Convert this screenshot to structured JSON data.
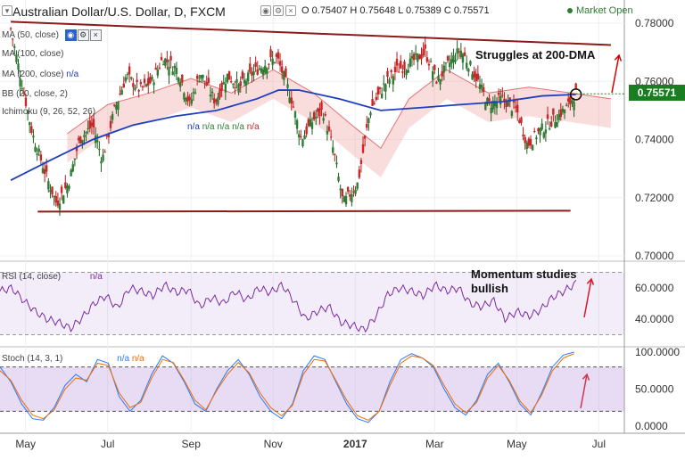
{
  "header": {
    "title": "Australian Dollar/U.S. Dollar, D, FXCM",
    "ohlc": "O 0.75407  H 0.75648  L 0.75389  C 0.75571",
    "market_status": "Market Open",
    "market_status_color": "#2e7d32"
  },
  "indicators": {
    "sma1": "MA (50, close)",
    "sma2": "MA (100, close)",
    "sma3": "MA (200, close)",
    "bb": "BB (20, close, 2)",
    "ichimoku": "Ichimoku (9, 26, 52, 26)",
    "na": "n/a",
    "rsi": "RSI (14, close)",
    "stoch": "Stoch (14, 3, 1)"
  },
  "annotations": {
    "dma": "Struggles at 200-DMA",
    "momentum_line1": "Momentum studies",
    "momentum_line2": "bullish"
  },
  "price_tag": "0.75571",
  "chart_data": [
    {
      "type": "candlestick",
      "title": "Australian Dollar/U.S. Dollar, D, FXCM",
      "ylim": [
        0.69,
        0.785
      ],
      "y_ticks": [
        "0.78000",
        "0.76000",
        "0.74000",
        "0.72000",
        "0.70000"
      ],
      "x_ticks": [
        "May",
        "Jul",
        "Sep",
        "Nov",
        "2017",
        "Mar",
        "May",
        "Jul"
      ],
      "last_price": 0.75571,
      "close_path": [
        [
          "2016-04-20",
          0.778
        ],
        [
          "2016-04-28",
          0.76
        ],
        [
          "2016-05-06",
          0.742
        ],
        [
          "2016-05-16",
          0.728
        ],
        [
          "2016-05-24",
          0.718
        ],
        [
          "2016-06-02",
          0.725
        ],
        [
          "2016-06-10",
          0.74
        ],
        [
          "2016-06-20",
          0.745
        ],
        [
          "2016-06-27",
          0.733
        ],
        [
          "2016-07-06",
          0.75
        ],
        [
          "2016-07-15",
          0.762
        ],
        [
          "2016-07-25",
          0.757
        ],
        [
          "2016-08-03",
          0.76
        ],
        [
          "2016-08-11",
          0.768
        ],
        [
          "2016-08-22",
          0.764
        ],
        [
          "2016-08-31",
          0.752
        ],
        [
          "2016-09-08",
          0.763
        ],
        [
          "2016-09-19",
          0.753
        ],
        [
          "2016-09-28",
          0.762
        ],
        [
          "2016-10-07",
          0.758
        ],
        [
          "2016-10-17",
          0.763
        ],
        [
          "2016-10-26",
          0.766
        ],
        [
          "2016-11-04",
          0.768
        ],
        [
          "2016-11-14",
          0.755
        ],
        [
          "2016-11-22",
          0.74
        ],
        [
          "2016-12-01",
          0.747
        ],
        [
          "2016-12-08",
          0.75
        ],
        [
          "2016-12-16",
          0.736
        ],
        [
          "2016-12-23",
          0.718
        ],
        [
          "2017-01-03",
          0.725
        ],
        [
          "2017-01-12",
          0.75
        ],
        [
          "2017-01-23",
          0.759
        ],
        [
          "2017-02-01",
          0.764
        ],
        [
          "2017-02-10",
          0.766
        ],
        [
          "2017-02-22",
          0.77
        ],
        [
          "2017-03-03",
          0.76
        ],
        [
          "2017-03-10",
          0.765
        ],
        [
          "2017-03-20",
          0.771
        ],
        [
          "2017-03-29",
          0.764
        ],
        [
          "2017-04-10",
          0.752
        ],
        [
          "2017-04-20",
          0.754
        ],
        [
          "2017-05-01",
          0.75
        ],
        [
          "2017-05-09",
          0.738
        ],
        [
          "2017-05-18",
          0.743
        ],
        [
          "2017-05-29",
          0.747
        ],
        [
          "2017-06-05",
          0.75
        ],
        [
          "2017-06-09",
          0.752
        ],
        [
          "2017-06-14",
          0.756
        ]
      ],
      "series": [
        {
          "name": "MA (200, close)",
          "color": "#1f3fbf",
          "values": [
            [
              "2016-04-20",
              0.726
            ],
            [
              "2016-05-20",
              0.733
            ],
            [
              "2016-06-20",
              0.74
            ],
            [
              "2016-07-20",
              0.745
            ],
            [
              "2016-08-20",
              0.748
            ],
            [
              "2016-09-20",
              0.75
            ],
            [
              "2016-10-20",
              0.754
            ],
            [
              "2016-11-05",
              0.757
            ],
            [
              "2016-11-20",
              0.757
            ],
            [
              "2016-12-20",
              0.754
            ],
            [
              "2017-01-20",
              0.75
            ],
            [
              "2017-02-20",
              0.751
            ],
            [
              "2017-03-20",
              0.752
            ],
            [
              "2017-04-20",
              0.753
            ],
            [
              "2017-05-20",
              0.755
            ],
            [
              "2017-06-14",
              0.7555
            ]
          ]
        },
        {
          "name": "Ichimoku (9, 26, 52, 26)",
          "color": "#e57373",
          "values": [
            [
              "2016-06-01",
              0.738
            ],
            [
              "2016-07-01",
              0.748
            ],
            [
              "2016-08-01",
              0.752
            ],
            [
              "2016-09-01",
              0.757
            ],
            [
              "2016-10-01",
              0.752
            ],
            [
              "2016-11-01",
              0.76
            ],
            [
              "2016-12-01",
              0.752
            ],
            [
              "2017-01-01",
              0.74
            ],
            [
              "2017-01-20",
              0.733
            ],
            [
              "2017-02-10",
              0.75
            ],
            [
              "2017-03-10",
              0.76
            ],
            [
              "2017-04-10",
              0.752
            ],
            [
              "2017-05-10",
              0.754
            ],
            [
              "2017-06-10",
              0.752
            ],
            [
              "2017-07-10",
              0.75
            ]
          ]
        }
      ],
      "trendlines": [
        {
          "from": [
            "2016-04-20",
            0.7805
          ],
          "to": [
            "2017-07-10",
            0.7725
          ],
          "color": "#8b1a1a"
        },
        {
          "from": [
            "2016-05-10",
            0.7152
          ],
          "to": [
            "2017-06-10",
            0.7155
          ],
          "color": "#8b1a1a"
        }
      ]
    },
    {
      "type": "line",
      "title": "RSI (14, close)",
      "ylim": [
        30,
        70
      ],
      "y_ticks": [
        "60.0000",
        "40.0000"
      ],
      "band": [
        30,
        70
      ],
      "series": [
        {
          "name": "RSI (14, close)",
          "color": "#7b2ca0",
          "values": [
            58,
            60,
            52,
            45,
            40,
            38,
            34,
            41,
            50,
            55,
            47,
            60,
            58,
            55,
            62,
            57,
            59,
            48,
            54,
            50,
            58,
            52,
            60,
            57,
            62,
            52,
            40,
            45,
            48,
            38,
            36,
            33,
            42,
            56,
            60,
            58,
            55,
            62,
            58,
            60,
            50,
            48,
            52,
            40,
            45,
            42,
            46,
            54,
            58,
            63
          ]
        }
      ]
    },
    {
      "type": "line",
      "title": "Stoch (14, 3, 1)",
      "ylim": [
        0,
        100
      ],
      "y_ticks": [
        "100.0000",
        "50.0000",
        "0.0000"
      ],
      "band": [
        20,
        80
      ],
      "series": [
        {
          "name": "%K",
          "color": "#2979ff",
          "values": [
            80,
            60,
            30,
            10,
            8,
            25,
            55,
            70,
            60,
            90,
            85,
            40,
            20,
            35,
            70,
            95,
            85,
            60,
            30,
            20,
            50,
            75,
            90,
            70,
            40,
            20,
            10,
            30,
            75,
            95,
            90,
            60,
            30,
            10,
            5,
            20,
            60,
            90,
            98,
            92,
            80,
            50,
            25,
            15,
            35,
            70,
            85,
            60,
            30,
            15,
            45,
            80,
            96,
            100
          ]
        },
        {
          "name": "%D",
          "color": "#ef6c00",
          "values": [
            75,
            62,
            35,
            15,
            10,
            22,
            50,
            65,
            62,
            85,
            82,
            45,
            25,
            32,
            65,
            90,
            86,
            62,
            35,
            22,
            48,
            70,
            86,
            72,
            45,
            25,
            14,
            28,
            70,
            90,
            88,
            62,
            35,
            14,
            8,
            20,
            55,
            85,
            95,
            92,
            82,
            55,
            30,
            18,
            32,
            65,
            82,
            62,
            34,
            18,
            42,
            75,
            92,
            98
          ]
        }
      ]
    }
  ]
}
